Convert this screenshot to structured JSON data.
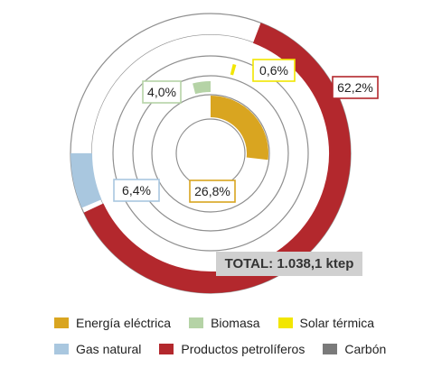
{
  "chart_data": {
    "type": "donut-rings",
    "total_label": "TOTAL: 1.038,1 ktep",
    "series": [
      {
        "name": "Energía eléctrica",
        "value": 26.8,
        "label": "26,8%",
        "color": "#D9A520"
      },
      {
        "name": "Biomasa",
        "value": 4.0,
        "label": "4,0%",
        "color": "#B5D3A6"
      },
      {
        "name": "Solar térmica",
        "value": 0.6,
        "label": "0,6%",
        "color": "#F2E600"
      },
      {
        "name": "Gas natural",
        "value": 6.4,
        "label": "6,4%",
        "color": "#A9C7DF"
      },
      {
        "name": "Productos petrolíferos",
        "value": 62.2,
        "label": "62,2%",
        "color": "#B3282D"
      },
      {
        "name": "Carbón",
        "value": 0.0,
        "label": "",
        "color": "#7A7A7A"
      }
    ]
  },
  "legend": {
    "row1": [
      {
        "label": "Energía eléctrica",
        "color": "#D9A520"
      },
      {
        "label": "Biomasa",
        "color": "#B5D3A6"
      },
      {
        "label": "Solar térmica",
        "color": "#F2E600"
      }
    ],
    "row2": [
      {
        "label": "Gas natural",
        "color": "#A9C7DF"
      },
      {
        "label": "Productos petrolíferos",
        "color": "#B3282D"
      },
      {
        "label": "Carbón",
        "color": "#7A7A7A"
      }
    ]
  }
}
